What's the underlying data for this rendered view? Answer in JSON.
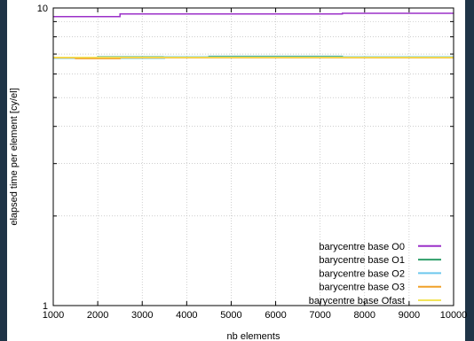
{
  "chart_data": {
    "type": "line",
    "title": "",
    "xlabel": "nb elements",
    "ylabel": "elapsed time per element [cy/el]",
    "xlim": [
      1000,
      10000
    ],
    "ylim": [
      1,
      10
    ],
    "yscale": "log",
    "grid": true,
    "legend_position": "bottom-right",
    "x_ticks": [
      1000,
      2000,
      3000,
      4000,
      5000,
      6000,
      7000,
      8000,
      9000,
      10000
    ],
    "y_ticks": [
      1,
      10
    ],
    "series": [
      {
        "name": "barycentre base O0",
        "color": "#9b30c8",
        "points": [
          [
            1000,
            9.35
          ],
          [
            2500,
            9.35
          ],
          [
            2500,
            9.55
          ],
          [
            7500,
            9.55
          ],
          [
            7500,
            9.6
          ],
          [
            10000,
            9.6
          ]
        ]
      },
      {
        "name": "barycentre base O1",
        "color": "#2e9e6a",
        "points": [
          [
            1000,
            6.8
          ],
          [
            2000,
            6.8
          ],
          [
            2000,
            6.85
          ],
          [
            4500,
            6.85
          ],
          [
            4500,
            6.88
          ],
          [
            7500,
            6.88
          ],
          [
            7500,
            6.85
          ],
          [
            10000,
            6.85
          ]
        ]
      },
      {
        "name": "barycentre base O2",
        "color": "#6ec8ee",
        "points": [
          [
            1000,
            6.78
          ],
          [
            3500,
            6.78
          ],
          [
            3500,
            6.84
          ],
          [
            10000,
            6.84
          ]
        ]
      },
      {
        "name": "barycentre base O3",
        "color": "#f0a028",
        "points": [
          [
            1000,
            6.8
          ],
          [
            1500,
            6.8
          ],
          [
            1500,
            6.76
          ],
          [
            2500,
            6.76
          ],
          [
            2500,
            6.8
          ],
          [
            10000,
            6.8
          ]
        ]
      },
      {
        "name": "barycentre base Ofast",
        "color": "#f2e45a",
        "points": [
          [
            1000,
            6.82
          ],
          [
            10000,
            6.82
          ]
        ]
      }
    ]
  }
}
